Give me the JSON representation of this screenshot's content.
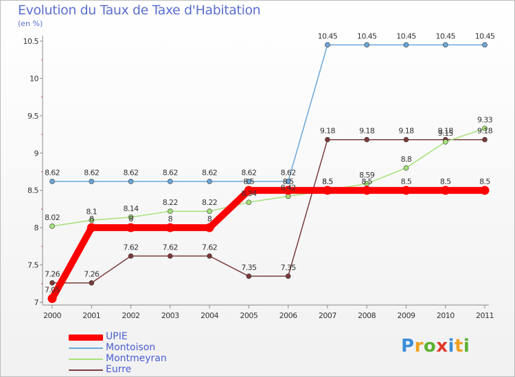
{
  "title": "Evolution du Taux de Taxe d'Habitation",
  "unit": "(en %)",
  "logo": "Proxiti",
  "chart_data": {
    "type": "line",
    "title": "Evolution du Taux de Taxe d'Habitation",
    "ylabel": "(en %)",
    "xlabel": "",
    "x": [
      "2000",
      "2001",
      "2002",
      "2003",
      "2004",
      "2005",
      "2006",
      "2007",
      "2008",
      "2009",
      "2010",
      "2011"
    ],
    "y_ticks": [
      "7",
      "7.5",
      "8",
      "8.5",
      "9",
      "9.5",
      "10",
      "10.5"
    ],
    "ylim": [
      7,
      10.5
    ],
    "grid": false,
    "legend_position": "bottom-left",
    "series": [
      {
        "name": "UPIE",
        "color": "#ff0000",
        "values": [
          7.05,
          8,
          8,
          8,
          8,
          8.5,
          8.5,
          8.5,
          8.5,
          8.5,
          8.5,
          8.5
        ],
        "labels": [
          "7.05",
          "8",
          "8",
          "8",
          "8",
          "8.5",
          "8.5",
          "8.5",
          "8.5",
          "8.5",
          "8.5",
          "8.5"
        ]
      },
      {
        "name": "Montoison",
        "color": "#6ba6d8",
        "values": [
          8.62,
          8.62,
          8.62,
          8.62,
          8.62,
          8.62,
          8.62,
          10.45,
          10.45,
          10.45,
          10.45,
          10.45
        ],
        "labels": [
          "8.62",
          "8.62",
          "8.62",
          "8.62",
          "8.62",
          "8.62",
          "8.62",
          "10.45",
          "10.45",
          "10.45",
          "10.45",
          "10.45"
        ]
      },
      {
        "name": "Montmeyran",
        "color": "#a6e07a",
        "values": [
          8.02,
          8.1,
          8.14,
          8.22,
          8.22,
          8.34,
          8.42,
          8.5,
          8.59,
          8.8,
          9.15,
          9.33
        ],
        "labels": [
          "8.02",
          "8.1",
          "8.14",
          "8.22",
          "8.22",
          "8.34",
          "8.42",
          "8.5",
          "8.59",
          "8.8",
          "9.15",
          "9.33"
        ]
      },
      {
        "name": "Eurre",
        "color": "#7a3a3a",
        "values": [
          7.26,
          7.26,
          7.62,
          7.62,
          7.62,
          7.35,
          7.35,
          9.18,
          9.18,
          9.18,
          9.18,
          9.18
        ],
        "labels": [
          "7.26",
          "7.26",
          "7.62",
          "7.62",
          "7.62",
          "7.35",
          "7.35",
          "9.18",
          "9.18",
          "9.18",
          "9.18",
          "9.18"
        ]
      }
    ]
  }
}
